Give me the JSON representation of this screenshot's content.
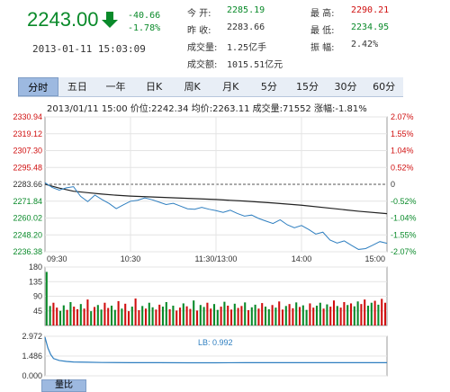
{
  "quote": {
    "price": "2243.00",
    "change": "-40.66",
    "change_pct": "-1.78%",
    "datetime": "2013-01-11 15:03:09",
    "stats": {
      "open_label": "今  开:",
      "open": "2285.19",
      "prev_label": "昨  收:",
      "prev": "2283.66",
      "vol_label": "成交量:",
      "vol": "1.25亿手",
      "amt_label": "成交额:",
      "amt": "1015.51亿元",
      "high_label": "最  高:",
      "high": "2290.21",
      "low_label": "最  低:",
      "low": "2234.95",
      "amp_label": "振  幅:",
      "amp": "2.42%"
    }
  },
  "tabs": [
    "分时",
    "五日",
    "一年",
    "日K",
    "周K",
    "月K",
    "5分",
    "15分",
    "30分",
    "60分"
  ],
  "info_line": "2013/01/11 15:00  价位:2242.34  均价:2263.11  成交量:71552  涨幅:-1.81%",
  "chart_data": {
    "type": "line",
    "price_axis": {
      "left_ticks": [
        "2330.94",
        "2319.12",
        "2307.30",
        "2295.48",
        "2283.66",
        "2271.84",
        "2260.02",
        "2248.20",
        "2236.38"
      ],
      "right_ticks": [
        "2.07%",
        "1.55%",
        "1.04%",
        "0.52%",
        "0",
        "-0.52%",
        "-1.04%",
        "-1.55%",
        "-2.07%"
      ],
      "ylim": [
        2236.38,
        2330.94
      ],
      "baseline": 2283.66
    },
    "time_labels": [
      "09:30",
      "10:30",
      "11:30/13:00",
      "14:00",
      "15:00"
    ],
    "price_series": {
      "name": "价位",
      "color": "#2f7fc0",
      "x": [
        0,
        5,
        10,
        15,
        20,
        25,
        30,
        35,
        40,
        45,
        50,
        55,
        60,
        65,
        70,
        75,
        80,
        85,
        90,
        95,
        100,
        105,
        110,
        115,
        120,
        125,
        130,
        135,
        140,
        145,
        150,
        155,
        160,
        165,
        170,
        175,
        180,
        185,
        190,
        195,
        200,
        205,
        210,
        215,
        220,
        225,
        230,
        235,
        240
      ],
      "values": [
        2284.8,
        2281.5,
        2279.6,
        2281.2,
        2282.0,
        2275.2,
        2271.5,
        2276.1,
        2273.0,
        2270.2,
        2266.6,
        2269.3,
        2271.8,
        2272.5,
        2274.1,
        2272.9,
        2271.2,
        2269.5,
        2270.3,
        2268.4,
        2266.5,
        2266.2,
        2267.5,
        2266.2,
        2265.2,
        2264.0,
        2265.5,
        2263.2,
        2261.4,
        2262.1,
        2259.7,
        2257.9,
        2256.2,
        2258.8,
        2255.3,
        2253.2,
        2254.8,
        2252.0,
        2248.8,
        2250.1,
        2244.6,
        2242.5,
        2244.0,
        2240.9,
        2238.0,
        2238.6,
        2241.0,
        2243.5,
        2242.3
      ]
    },
    "avg_series": {
      "name": "均价",
      "color": "#222222",
      "x": [
        0,
        10,
        20,
        30,
        40,
        50,
        60,
        80,
        100,
        120,
        140,
        160,
        180,
        200,
        220,
        240
      ],
      "values": [
        2283.7,
        2281.0,
        2278.8,
        2277.8,
        2276.8,
        2276.0,
        2275.4,
        2274.6,
        2273.8,
        2273.0,
        2271.9,
        2270.6,
        2269.0,
        2266.9,
        2264.8,
        2263.1
      ]
    },
    "volume_axis": {
      "ticks": [
        "180",
        "135",
        "90",
        "45"
      ],
      "ylim": [
        0,
        180
      ]
    },
    "volume_bars": {
      "values": [
        165,
        60,
        70,
        55,
        45,
        62,
        48,
        72,
        58,
        50,
        66,
        52,
        80,
        44,
        57,
        63,
        49,
        70,
        54,
        61,
        48,
        75,
        52,
        67,
        44,
        58,
        83,
        47,
        60,
        52,
        70,
        56,
        49,
        64,
        58,
        72,
        50,
        61,
        46,
        55,
        68,
        59,
        51,
        77,
        46,
        63,
        57,
        70,
        52,
        66,
        48,
        58,
        73,
        61,
        49,
        67,
        54,
        60,
        71,
        47,
        56,
        64,
        52,
        69,
        58,
        50,
        63,
        55,
        74,
        49,
        60,
        66,
        53,
        71,
        57,
        62,
        48,
        68,
        55,
        61,
        70,
        52,
        65,
        58,
        77,
        60,
        55,
        72,
        63,
        68,
        59,
        74,
        66,
        80,
        61,
        70,
        76,
        64,
        82,
        70
      ],
      "up_color": "#d01010",
      "down_color": "#0a8a2a"
    },
    "ratio_axis": {
      "ticks": [
        "2.972",
        "1.486",
        "0.000"
      ],
      "ylim": [
        0,
        2.972
      ],
      "label": "LB: 0.992"
    },
    "ratio_series": {
      "name": "量比",
      "color": "#2f7fc0",
      "x": [
        0,
        2,
        4,
        6,
        10,
        15,
        20,
        30,
        40,
        60,
        80,
        100,
        120,
        140,
        160,
        180,
        200,
        220,
        240
      ],
      "values": [
        2.9,
        2.1,
        1.6,
        1.3,
        1.15,
        1.08,
        1.04,
        1.02,
        1.0,
        0.99,
        0.99,
        0.98,
        0.98,
        0.99,
        0.99,
        0.99,
        0.99,
        0.99,
        0.99
      ]
    }
  },
  "bottom_tab": "量比"
}
